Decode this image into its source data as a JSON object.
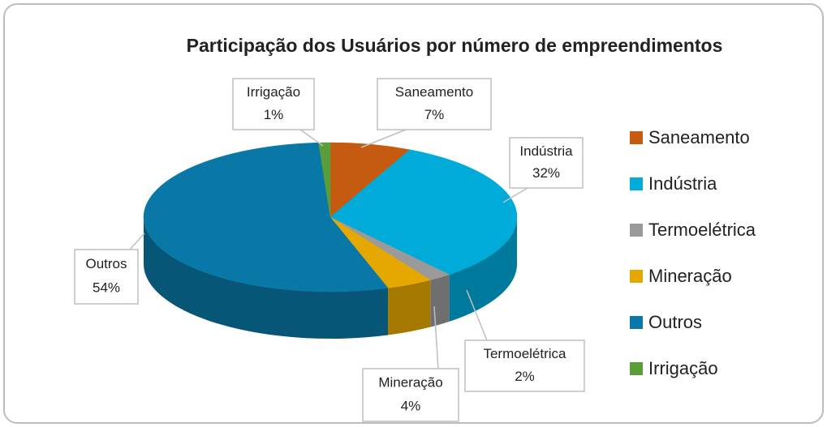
{
  "chart_data": {
    "type": "pie",
    "title": "Participação dos Usuários por número de empreendimentos",
    "categories": [
      "Saneamento",
      "Indústria",
      "Termoelétrica",
      "Mineração",
      "Outros",
      "Irrigação"
    ],
    "values": [
      7,
      32,
      2,
      4,
      54,
      1
    ],
    "value_labels": [
      "7%",
      "32%",
      "2%",
      "4%",
      "54%",
      "1%"
    ],
    "colors": [
      "#c55a11",
      "#00aad9",
      "#9a9a9a",
      "#e5a800",
      "#0a78a6",
      "#5a9e3b"
    ],
    "legend": "right"
  }
}
